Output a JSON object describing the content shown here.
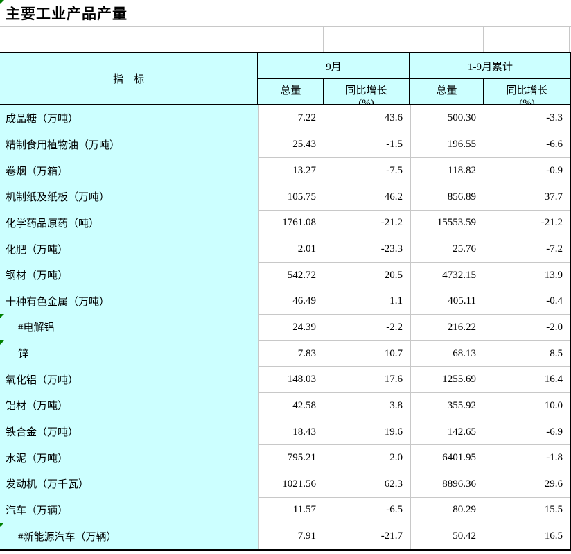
{
  "title": "主要工业产品产量",
  "table": {
    "indicator_header": "指　标",
    "col_groups": [
      {
        "label": "9月"
      },
      {
        "label": "1-9月累计"
      }
    ],
    "subheaders": [
      {
        "l1": "总量",
        "l2": ""
      },
      {
        "l1": "同比增长",
        "l2": "(%)"
      },
      {
        "l1": "总量",
        "l2": ""
      },
      {
        "l1": "同比增长",
        "l2": "(%)"
      }
    ],
    "rows": [
      {
        "label": "成品糖（万吨）",
        "indent": false,
        "marker": false,
        "values": [
          "7.22",
          "43.6",
          "500.30",
          "-3.3"
        ]
      },
      {
        "label": "精制食用植物油（万吨）",
        "indent": false,
        "marker": false,
        "values": [
          "25.43",
          "-1.5",
          "196.55",
          "-6.6"
        ]
      },
      {
        "label": "卷烟（万箱）",
        "indent": false,
        "marker": false,
        "values": [
          "13.27",
          "-7.5",
          "118.82",
          "-0.9"
        ]
      },
      {
        "label": "机制纸及纸板（万吨）",
        "indent": false,
        "marker": false,
        "values": [
          "105.75",
          "46.2",
          "856.89",
          "37.7"
        ]
      },
      {
        "label": "化学药品原药（吨）",
        "indent": false,
        "marker": false,
        "values": [
          "1761.08",
          "-21.2",
          "15553.59",
          "-21.2"
        ]
      },
      {
        "label": "化肥（万吨）",
        "indent": false,
        "marker": false,
        "values": [
          "2.01",
          "-23.3",
          "25.76",
          "-7.2"
        ]
      },
      {
        "label": "钢材（万吨）",
        "indent": false,
        "marker": false,
        "values": [
          "542.72",
          "20.5",
          "4732.15",
          "13.9"
        ]
      },
      {
        "label": "十种有色金属（万吨）",
        "indent": false,
        "marker": false,
        "values": [
          "46.49",
          "1.1",
          "405.11",
          "-0.4"
        ]
      },
      {
        "label": "#电解铝",
        "indent": true,
        "marker": true,
        "values": [
          "24.39",
          "-2.2",
          "216.22",
          "-2.0"
        ]
      },
      {
        "label": "锌",
        "indent": true,
        "marker": true,
        "values": [
          "7.83",
          "10.7",
          "68.13",
          "8.5"
        ]
      },
      {
        "label": "氧化铝（万吨）",
        "indent": false,
        "marker": false,
        "values": [
          "148.03",
          "17.6",
          "1255.69",
          "16.4"
        ]
      },
      {
        "label": "铝材（万吨）",
        "indent": false,
        "marker": false,
        "values": [
          "42.58",
          "3.8",
          "355.92",
          "10.0"
        ]
      },
      {
        "label": "铁合金（万吨）",
        "indent": false,
        "marker": false,
        "values": [
          "18.43",
          "19.6",
          "142.65",
          "-6.9"
        ]
      },
      {
        "label": "水泥（万吨）",
        "indent": false,
        "marker": false,
        "values": [
          "795.21",
          "2.0",
          "6401.95",
          "-1.8"
        ]
      },
      {
        "label": "发动机（万千瓦）",
        "indent": false,
        "marker": false,
        "values": [
          "1021.56",
          "62.3",
          "8896.36",
          "29.6"
        ]
      },
      {
        "label": "汽车（万辆）",
        "indent": false,
        "marker": false,
        "values": [
          "11.57",
          "-6.5",
          "80.29",
          "15.5"
        ]
      },
      {
        "label": "#新能源汽车（万辆）",
        "indent": true,
        "marker": true,
        "values": [
          "7.91",
          "-21.7",
          "50.42",
          "16.5"
        ]
      }
    ]
  },
  "colors": {
    "cell_background": "#ccffff",
    "grid_line": "#c8c8c8",
    "border": "#000000",
    "comment_marker": "#008000"
  }
}
